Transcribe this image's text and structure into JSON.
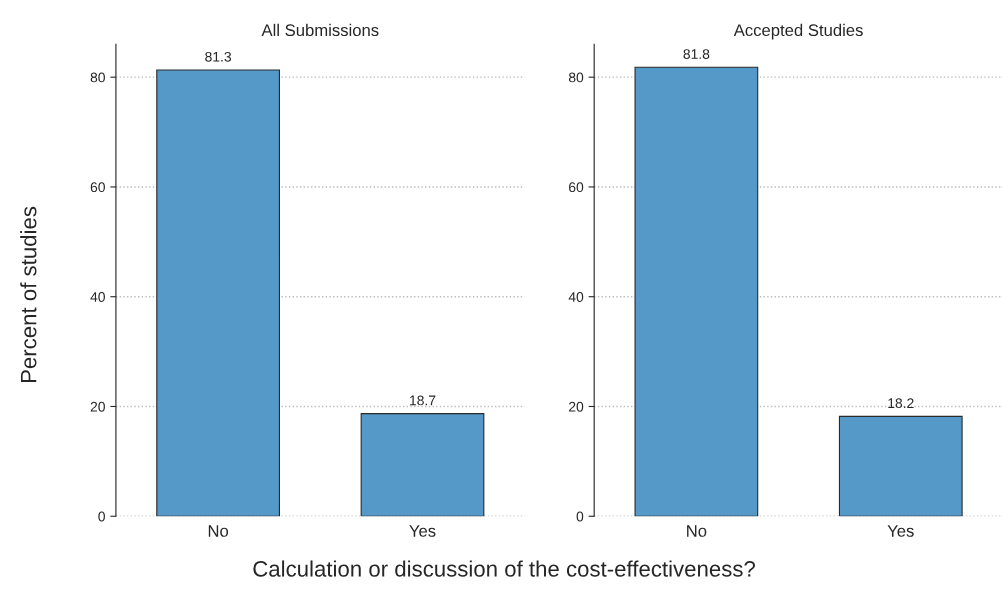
{
  "chart_data": [
    {
      "type": "bar",
      "title": "All Submissions",
      "ylabel": "Percent of studies",
      "xlabel": "Calculation or discussion of the cost-effectiveness?",
      "categories": [
        "No",
        "Yes"
      ],
      "values": [
        81.3,
        18.7
      ],
      "color": "#5599c8",
      "ylim": [
        0,
        86
      ],
      "yticks": [
        0,
        20,
        40,
        60,
        80
      ],
      "grid": "y",
      "data_labels": true
    },
    {
      "type": "bar",
      "title": "Accepted Studies",
      "categories": [
        "No",
        "Yes"
      ],
      "values": [
        81.8,
        18.2
      ],
      "color": "#5599c8",
      "ylim": [
        0,
        86
      ],
      "yticks": [
        0,
        20,
        40,
        60,
        80
      ],
      "grid": "y",
      "data_labels": true
    }
  ]
}
